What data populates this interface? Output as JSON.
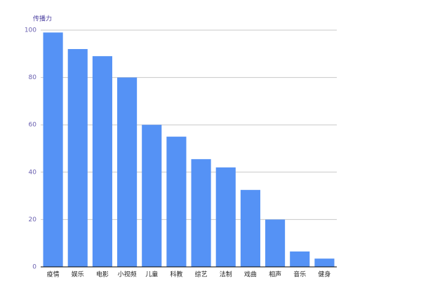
{
  "chart_data": {
    "type": "bar",
    "y_label": "传播力",
    "categories": [
      "疫情",
      "娱乐",
      "电影",
      "小视频",
      "儿童",
      "科教",
      "综艺",
      "法制",
      "戏曲",
      "相声",
      "音乐",
      "健身"
    ],
    "values": [
      99,
      92,
      89,
      80,
      60,
      55,
      45.5,
      42,
      32.5,
      20,
      6.5,
      3.5
    ],
    "color": "#5592f5",
    "ylim": [
      0,
      100
    ],
    "yticks": [
      0,
      20,
      40,
      60,
      80,
      100
    ],
    "grid": true
  }
}
